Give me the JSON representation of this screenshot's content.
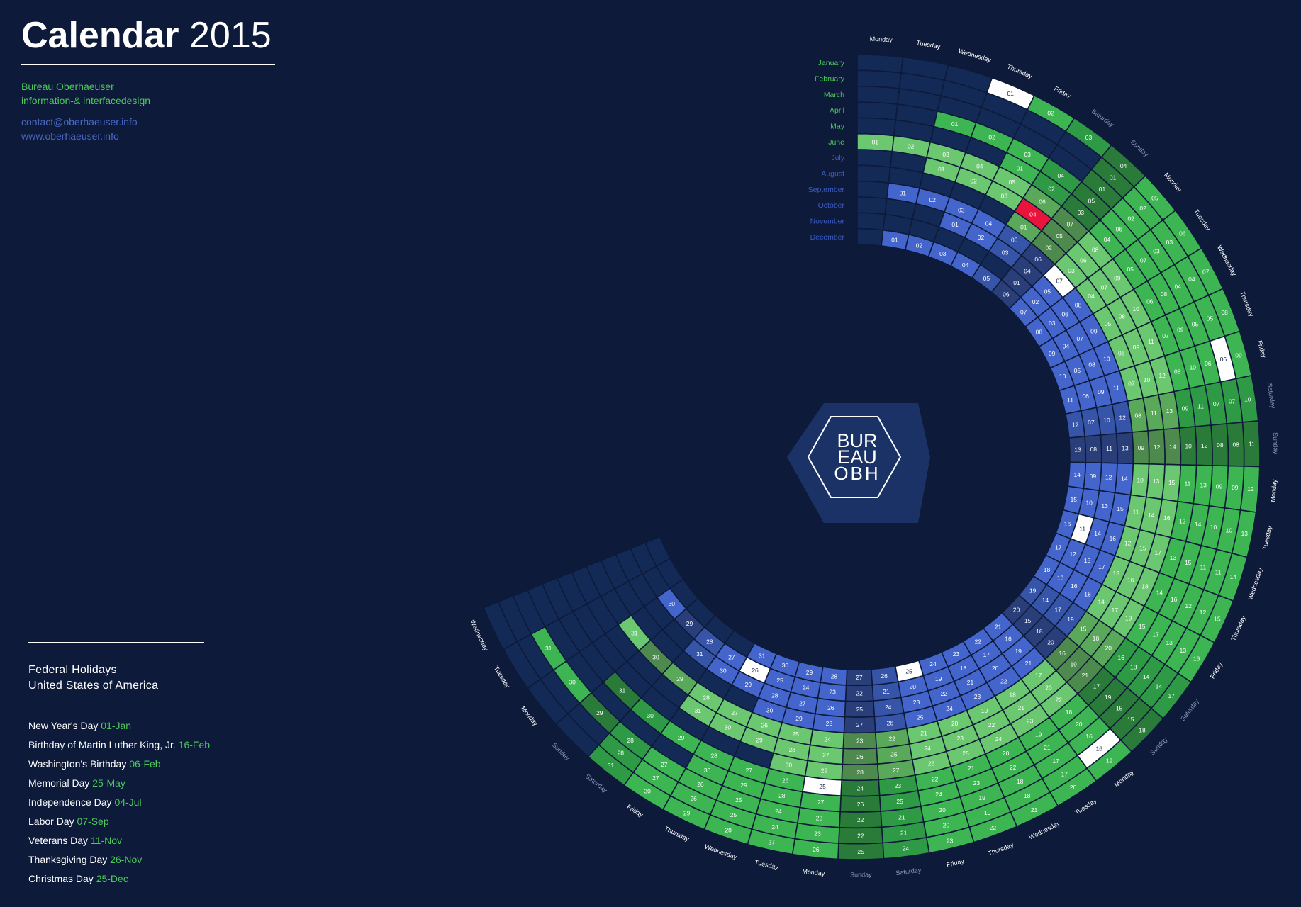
{
  "header": {
    "title_bold": "Calendar",
    "title_year": "2015",
    "studio": "Bureau Oberhaeuser",
    "tagline": "information-& interfacedesign",
    "email": "contact@oberhaeuser.info",
    "website": "www.oberhaeuser.info"
  },
  "logo": {
    "line1": "BUR",
    "line2": "EAU",
    "line3": "OBH"
  },
  "holidays": {
    "heading_line1": "Federal Holidays",
    "heading_line2": "United States of America",
    "items": [
      {
        "name": "New Year's Day",
        "date": "01-Jan"
      },
      {
        "name": "Birthday of Martin Luther King, Jr.",
        "date": "16-Feb"
      },
      {
        "name": "Washington's Birthday",
        "date": "06-Feb"
      },
      {
        "name": "Memorial Day",
        "date": "25-May"
      },
      {
        "name": "Independence Day",
        "date": "04-Jul"
      },
      {
        "name": "Labor Day",
        "date": "07-Sep"
      },
      {
        "name": "Veterans Day",
        "date": "11-Nov"
      },
      {
        "name": "Thanksgiving Day",
        "date": "26-Nov"
      },
      {
        "name": "Christmas Day",
        "date": "25-Dec"
      }
    ]
  },
  "calendar": {
    "year": 2015,
    "months": [
      "January",
      "February",
      "March",
      "April",
      "May",
      "June",
      "July",
      "August",
      "September",
      "October",
      "November",
      "December"
    ],
    "month_lengths": [
      31,
      28,
      31,
      30,
      31,
      30,
      31,
      31,
      30,
      31,
      30,
      31
    ],
    "first_weekday_index": [
      3,
      6,
      6,
      2,
      4,
      0,
      2,
      5,
      1,
      3,
      6,
      1
    ],
    "weekdays": [
      "Monday",
      "Tuesday",
      "Wednesday",
      "Thursday",
      "Friday",
      "Saturday",
      "Sunday"
    ],
    "white_cells": [
      {
        "month": 1,
        "day": 1
      },
      {
        "month": 2,
        "day": 16
      },
      {
        "month": 2,
        "day": 6
      },
      {
        "month": 5,
        "day": 25
      },
      {
        "month": 9,
        "day": 7
      },
      {
        "month": 11,
        "day": 11
      },
      {
        "month": 11,
        "day": 26
      },
      {
        "month": 12,
        "day": 25
      }
    ],
    "red_cells": [
      {
        "month": 7,
        "day": 4
      }
    ],
    "colors": {
      "background": "#0d1a3a",
      "empty_cell": "#142a56",
      "month_label_green": "#4cc85e",
      "month_label_blue": "#3c5bc0",
      "winter_bright": "#3cb552",
      "winter_mid": "#2e9a45",
      "winter_dark": "#2a7a3a",
      "summer_bright": "#6cc870",
      "summer_mid": "#5aa85a",
      "summer_dark": "#4e8a4e",
      "autumn_bright": "#4466cc",
      "autumn_mid": "#3655a8",
      "autumn_dark": "#2a3f7a",
      "holiday": "#ffffff",
      "highlight": "#e8143c",
      "logo_bg": "#1a3266"
    }
  }
}
